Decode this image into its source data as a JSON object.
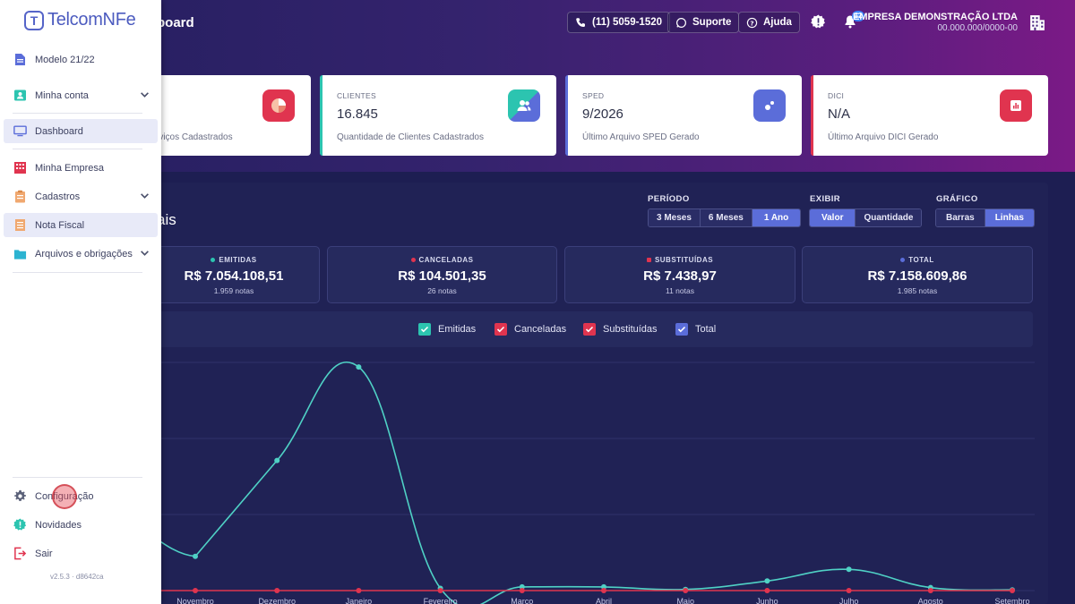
{
  "header": {
    "title": "board",
    "phone_label": "(11) 5059-1520",
    "support_label": "Suporte",
    "help_label": "Ajuda",
    "notifications_count": "12",
    "company_name": "EMPRESA DEMONSTRAÇÃO LTDA",
    "company_cnpj": "00.000.000/0000-00"
  },
  "sidebar": {
    "logo_text": "TelcomNFe",
    "items": [
      {
        "label": "Modelo 21/22",
        "icon": "document-icon"
      },
      {
        "label": "Minha conta",
        "icon": "user-card-icon"
      },
      {
        "label": "Dashboard",
        "icon": "monitor-icon"
      },
      {
        "label": "Minha Empresa",
        "icon": "building-icon"
      },
      {
        "label": "Cadastros",
        "icon": "clipboard-icon"
      },
      {
        "label": "Nota Fiscal",
        "icon": "receipt-icon"
      },
      {
        "label": "Arquivos e obrigações",
        "icon": "folder-icon"
      }
    ],
    "bottom_items": [
      {
        "label": "Configuração",
        "icon": "gear-icon"
      },
      {
        "label": "Novidades",
        "icon": "news-badge-icon"
      },
      {
        "label": "Sair",
        "icon": "logout-icon"
      }
    ],
    "version": "v2.5.3 · d8642ca"
  },
  "cards": [
    {
      "label": "",
      "value": "",
      "desc": "rviços Cadastrados",
      "color": "#e0344f"
    },
    {
      "label": "CLIENTES",
      "value": "16.845",
      "desc": "Quantidade de Clientes Cadastrados",
      "color": "#2cc4b0"
    },
    {
      "label": "SPED",
      "value": "9/2026",
      "desc": "Último Arquivo SPED Gerado",
      "color": "#5b6dd9"
    },
    {
      "label": "DICI",
      "value": "N/A",
      "desc": "Último Arquivo DICI Gerado",
      "color": "#e0344f"
    }
  ],
  "panel": {
    "title": "ais",
    "periodo_label": "PERÍODO",
    "periodo_options": [
      "3 Meses",
      "6 Meses",
      "1 Ano"
    ],
    "exibir_label": "EXIBIR",
    "exibir_options": [
      "Valor",
      "Quantidade"
    ],
    "grafico_label": "GRÁFICO",
    "grafico_options": [
      "Barras",
      "Linhas"
    ]
  },
  "summaries": [
    {
      "title": "EMITIDAS",
      "value": "R$ 7.054.108,51",
      "sub": "1.959 notas",
      "color": "#2cc4b0"
    },
    {
      "title": "CANCELADAS",
      "value": "R$ 104.501,35",
      "sub": "26 notas",
      "color": "#e0344f"
    },
    {
      "title": "SUBSTITUÍDAS",
      "value": "R$ 7.438,97",
      "sub": "11 notas",
      "color": "#e0344f"
    },
    {
      "title": "TOTAL",
      "value": "R$ 7.158.609,86",
      "sub": "1.985 notas",
      "color": "#5b6dd9"
    }
  ],
  "legend": [
    {
      "label": "Emitidas",
      "color": "#2cc4b0"
    },
    {
      "label": "Canceladas",
      "color": "#e0344f"
    },
    {
      "label": "Substituídas",
      "color": "#e0344f"
    },
    {
      "label": "Total",
      "color": "#5b6dd9"
    }
  ],
  "chart_data": {
    "type": "line",
    "categories": [
      "Novembro",
      "Dezembro",
      "Janeiro",
      "Fevereiro",
      "Março",
      "Abril",
      "Maio",
      "Junho",
      "Julho",
      "Agosto",
      "Setembro"
    ],
    "series": [
      {
        "name": "Emitidas",
        "color": "#4fd1c5",
        "values": [
          15,
          57,
          98,
          1,
          1.6,
          1.6,
          0.5,
          4.2,
          9.3,
          1.3,
          0.3
        ]
      },
      {
        "name": "Canceladas",
        "color": "#e0344f",
        "values": [
          0,
          0,
          0,
          0,
          0,
          0,
          0,
          0,
          0,
          0,
          0
        ]
      }
    ],
    "ylim": [
      0,
      100
    ],
    "grid": true
  }
}
